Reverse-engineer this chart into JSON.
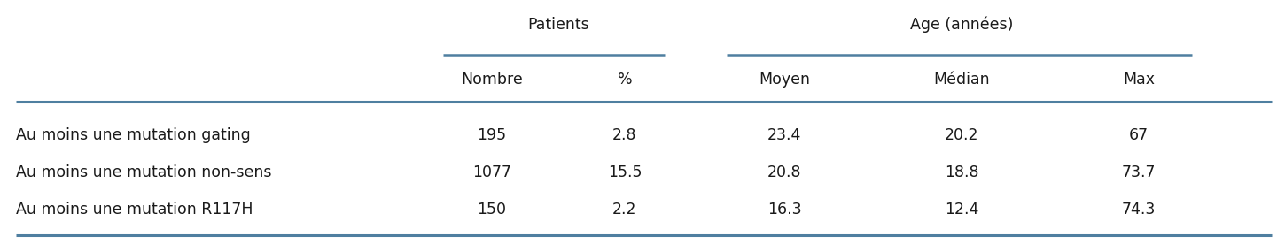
{
  "group_headers": [
    {
      "text": "Patients"
    },
    {
      "text": "Age (années)"
    }
  ],
  "col_headers": [
    "Nombre",
    "%",
    "Moyen",
    "Médian",
    "Max"
  ],
  "row_labels": [
    "Au moins une mutation gating",
    "Au moins une mutation non-sens",
    "Au moins une mutation R117H"
  ],
  "table_data": [
    [
      "195",
      "2.8",
      "23.4",
      "20.2",
      "67"
    ],
    [
      "1077",
      "15.5",
      "20.8",
      "18.8",
      "73.7"
    ],
    [
      "150",
      "2.2",
      "16.3",
      "12.4",
      "74.3"
    ]
  ],
  "line_color": "#4f7fa0",
  "bg_color": "#ffffff",
  "text_color": "#1a1a1a",
  "font_size": 12.5,
  "font_family": "DejaVu Sans"
}
